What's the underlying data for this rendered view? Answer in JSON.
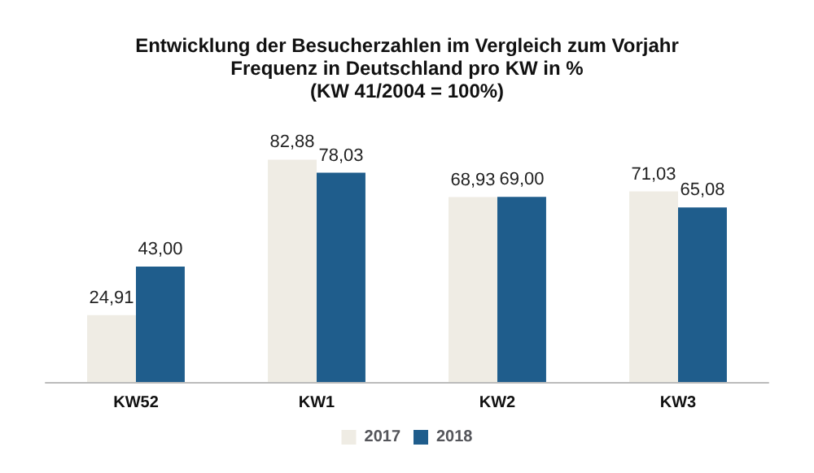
{
  "chart_data": {
    "type": "bar",
    "title": "Entwicklung der Besucherzahlen im Vergleich zum Vorjahr\nFrequenz in Deutschland pro KW in %\n(KW 41/2004 = 100%)",
    "categories": [
      "KW52",
      "KW1",
      "KW2",
      "KW3"
    ],
    "series": [
      {
        "name": "2017",
        "color": "#efece4",
        "values": [
          24.91,
          82.88,
          68.93,
          71.03
        ],
        "value_labels": [
          "24,91",
          "82,88",
          "68,93",
          "71,03"
        ]
      },
      {
        "name": "2018",
        "color": "#1f5d8c",
        "values": [
          43.0,
          78.03,
          69.0,
          65.08
        ],
        "value_labels": [
          "43,00",
          "78,03",
          "69,00",
          "65,08"
        ]
      }
    ],
    "legend": "bottom"
  }
}
